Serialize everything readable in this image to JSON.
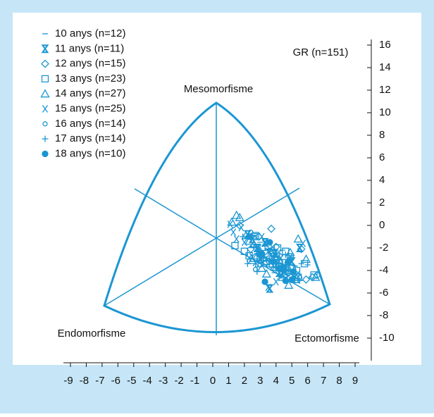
{
  "chart_data": {
    "type": "scatter",
    "annotations": {
      "group": "GR (n=151)",
      "mesomorphy": "Mesomorfisme",
      "endomorphy": "Endomorfisme",
      "ectomorphy": "Ectomorfisme"
    },
    "xlim": [
      -9,
      9
    ],
    "xticks": [
      -9,
      -8,
      -7,
      -6,
      -5,
      -4,
      -3,
      -2,
      -1,
      0,
      1,
      2,
      3,
      4,
      5,
      6,
      7,
      8,
      9
    ],
    "ylim": [
      -10,
      16
    ],
    "yticks": [
      -10,
      -8,
      -6,
      -4,
      -2,
      0,
      2,
      4,
      6,
      8,
      10,
      12,
      14,
      16
    ],
    "legend": "top-left",
    "series": [
      {
        "name": "10 anys (n=12)",
        "marker": "dash",
        "color": "#1b96d3",
        "x": [
          2.8,
          3.5,
          4.1,
          4.6,
          5.2,
          5.6,
          3.0,
          3.9,
          4.4,
          5.0,
          2.5,
          6.0
        ],
        "values": [
          -2.5,
          -3.0,
          -2.8,
          -3.5,
          -3.6,
          -3.4,
          -1.5,
          -4.2,
          -2.2,
          -4.8,
          -3.2,
          -3.5
        ]
      },
      {
        "name": "11 anys (n=11)",
        "marker": "hourglass",
        "color": "#1b96d3",
        "x": [
          2.2,
          2.8,
          3.3,
          3.9,
          4.5,
          5.5,
          3.0,
          4.2,
          3.6,
          5.0,
          2.5
        ],
        "values": [
          -0.8,
          -2.0,
          -1.5,
          -2.5,
          -3.8,
          -2.0,
          -3.0,
          -4.2,
          -5.6,
          -3.2,
          -1.2
        ]
      },
      {
        "name": "12 anys (n=15)",
        "marker": "diamond",
        "color": "#1b96d3",
        "x": [
          1.7,
          2.4,
          3.1,
          3.7,
          4.2,
          4.8,
          5.3,
          5.9,
          6.3,
          6.6,
          3.4,
          4.0,
          4.5,
          2.9,
          5.6
        ],
        "values": [
          0.0,
          -2.1,
          -2.6,
          -0.3,
          -2.7,
          -4.2,
          -4.4,
          -4.8,
          -4.6,
          -4.4,
          -3.3,
          -1.9,
          -3.9,
          -1.0,
          -2.1
        ]
      },
      {
        "name": "13 anys (n=23)",
        "marker": "square",
        "color": "#1b96d3",
        "x": [
          1.4,
          2.0,
          2.6,
          3.0,
          3.4,
          3.8,
          4.2,
          4.6,
          5.0,
          5.4,
          5.8,
          6.4,
          2.3,
          2.9,
          3.5,
          4.1,
          4.7,
          5.3,
          2.7,
          3.3,
          3.9,
          4.4,
          4.9
        ],
        "values": [
          -1.8,
          -2.3,
          -1.0,
          -2.9,
          -3.2,
          -2.4,
          -3.6,
          -2.3,
          -3.8,
          -4.6,
          -3.4,
          -4.4,
          -2.7,
          -3.4,
          -1.9,
          -2.0,
          -4.0,
          -4.0,
          -0.9,
          -2.5,
          -3.0,
          -3.3,
          -2.8
        ]
      },
      {
        "name": "14 anys (n=27)",
        "marker": "triangle",
        "color": "#1b96d3",
        "x": [
          1.2,
          1.7,
          2.1,
          2.6,
          3.0,
          3.4,
          3.8,
          4.2,
          4.6,
          5.0,
          5.4,
          5.9,
          6.5,
          1.5,
          2.3,
          2.8,
          3.2,
          3.6,
          4.0,
          4.4,
          4.8,
          5.2,
          3.1,
          4.9,
          2.5,
          3.9,
          4.5
        ],
        "values": [
          0.3,
          0.7,
          -0.9,
          -1.7,
          -2.3,
          -4.3,
          -2.2,
          -3.1,
          -4.0,
          -3.6,
          -1.2,
          -3.0,
          -4.6,
          0.9,
          -1.4,
          -2.7,
          -2.9,
          -3.4,
          -2.8,
          -4.6,
          -5.3,
          -4.8,
          -3.8,
          -2.4,
          -3.1,
          -3.7,
          -4.3
        ]
      },
      {
        "name": "15 anys (n=25)",
        "marker": "cross",
        "color": "#1b96d3",
        "x": [
          1.1,
          1.5,
          2.0,
          2.5,
          2.9,
          3.3,
          3.7,
          4.1,
          4.5,
          4.9,
          5.3,
          5.7,
          1.3,
          1.8,
          2.3,
          2.7,
          3.1,
          3.5,
          3.9,
          4.3,
          4.7,
          5.1,
          3.5,
          4.0,
          2.9
        ],
        "values": [
          0.1,
          -1.2,
          -1.5,
          -2.8,
          -2.4,
          -1.6,
          -2.6,
          -3.4,
          -4.1,
          -2.8,
          -4.4,
          -1.6,
          -0.6,
          -0.2,
          -2.9,
          -3.3,
          -1.0,
          -5.5,
          -3.7,
          -2.9,
          -3.6,
          -4.6,
          -2.3,
          -5.0,
          -2.0
        ]
      },
      {
        "name": "16 anys (n=14)",
        "marker": "circle",
        "color": "#1b96d3",
        "x": [
          2.4,
          2.9,
          3.3,
          3.7,
          4.1,
          4.5,
          4.9,
          5.3,
          3.0,
          3.6,
          4.3,
          4.7,
          2.7,
          5.5
        ],
        "values": [
          -0.6,
          -2.6,
          -3.0,
          -3.6,
          -2.6,
          -3.9,
          -2.9,
          -4.9,
          -3.5,
          -2.2,
          -4.5,
          -3.3,
          -3.9,
          -4.6
        ]
      },
      {
        "name": "17 anys (n=14)",
        "marker": "plus",
        "color": "#1b96d3",
        "x": [
          1.9,
          2.6,
          3.1,
          3.5,
          3.9,
          4.3,
          4.7,
          5.1,
          5.5,
          2.8,
          3.4,
          4.0,
          4.6,
          2.2
        ],
        "values": [
          -1.0,
          -1.9,
          -2.8,
          -2.1,
          -3.0,
          -3.6,
          -4.4,
          -4.7,
          -4.9,
          -4.1,
          -3.1,
          -4.0,
          -2.6,
          -3.4
        ]
      },
      {
        "name": "18 anys (n=10)",
        "marker": "dot",
        "color": "#1b96d3",
        "x": [
          2.3,
          3.1,
          3.6,
          3.8,
          4.2,
          4.6,
          5.0,
          3.3,
          4.8,
          5.1
        ],
        "values": [
          -1.0,
          -2.5,
          -1.5,
          -3.2,
          -3.8,
          -4.9,
          -4.8,
          -5.0,
          -3.2,
          -4.1
        ]
      }
    ]
  }
}
